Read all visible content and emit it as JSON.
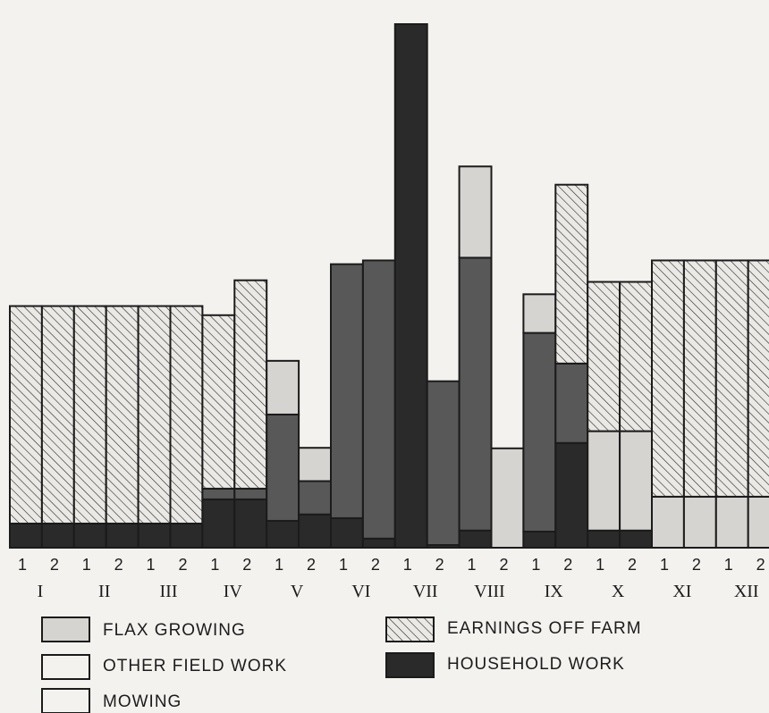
{
  "chart_data": {
    "type": "bar",
    "stacked": true,
    "title": "",
    "xlabel": "",
    "ylabel": "",
    "grid": false,
    "legend_position": "bottom",
    "ylim": [
      0,
      100
    ],
    "colors": {
      "Household work": "#2a2a2a",
      "Other field work": "#585858",
      "Mowing": "#5f5f5f",
      "Flax growing": "#d6d4d1",
      "Earnings off farm": "#e9e7e3",
      "outline": "#1b1b1b",
      "background": "#f4f2ef"
    },
    "categories": [
      "I-1",
      "I-2",
      "II-1",
      "II-2",
      "III-1",
      "III-2",
      "IV-1",
      "IV-2",
      "V-1",
      "V-2",
      "VI-1",
      "VI-2",
      "VII-1",
      "VII-2",
      "VIII-1",
      "VIII-2",
      "IX-1",
      "IX-2",
      "X-1",
      "X-2",
      "XI-1",
      "XI-2",
      "XII-1",
      "XII-2"
    ],
    "tick_labels": [
      "1",
      "2",
      "1",
      "2",
      "1",
      "2",
      "1",
      "2",
      "1",
      "2",
      "1",
      "2",
      "1",
      "2",
      "1",
      "2",
      "1",
      "2",
      "1",
      "2",
      "1",
      "2",
      "1",
      "2"
    ],
    "month_labels": [
      "I",
      "II",
      "III",
      "IV",
      "V",
      "VI",
      "VII",
      "VIII",
      "IX",
      "X",
      "XI",
      "XII"
    ],
    "series": [
      {
        "name": "Household work",
        "pattern": "solid-black",
        "values": [
          4.5,
          4.5,
          4.5,
          4.5,
          4.5,
          4.5,
          9,
          9,
          5,
          6.2,
          5.5,
          1.7,
          97.5,
          0.5,
          3.2,
          0,
          3,
          19.5,
          3.2,
          3.2,
          0,
          0,
          0,
          0
        ]
      },
      {
        "name": "Other field work",
        "pattern": "dark-grey",
        "values": [
          0,
          0,
          0,
          0,
          0,
          0,
          2,
          2,
          19.8,
          6.2,
          47.3,
          0,
          0,
          30.5,
          50.8,
          0,
          37,
          14.8,
          0,
          0,
          0,
          0,
          0,
          0
        ]
      },
      {
        "name": "Mowing",
        "pattern": "dark-grey",
        "values": [
          0,
          0,
          0,
          0,
          0,
          0,
          0,
          0,
          0,
          0,
          0,
          51.8,
          0,
          0,
          0,
          0,
          0,
          0,
          0,
          0,
          0,
          0,
          0,
          0
        ]
      },
      {
        "name": "Flax growing",
        "pattern": "light-grey",
        "values": [
          0,
          0,
          0,
          0,
          0,
          0,
          0,
          0,
          10,
          6.2,
          0,
          0,
          0,
          0,
          17,
          18.5,
          7.2,
          0,
          18.5,
          18.5,
          9.5,
          9.5,
          9.5,
          9.5
        ]
      },
      {
        "name": "Earnings off farm",
        "pattern": "hatched",
        "values": [
          40.5,
          40.5,
          40.5,
          40.5,
          40.5,
          40.5,
          32.3,
          38.8,
          0,
          0,
          0,
          0,
          0,
          0,
          0,
          0,
          0,
          33.3,
          27.8,
          27.8,
          44,
          44,
          44,
          44
        ]
      }
    ],
    "legend": [
      {
        "label": "FLAX GROWING",
        "pattern": "light-grey"
      },
      {
        "label": "EARNINGS OFF FARM",
        "pattern": "hatched"
      },
      {
        "label": "OTHER FIELD WORK",
        "pattern": "dark-grey"
      },
      {
        "label": "HOUSEHOLD WORK",
        "pattern": "solid-black"
      },
      {
        "label": "MOWING",
        "pattern": "dark-grey"
      }
    ]
  }
}
